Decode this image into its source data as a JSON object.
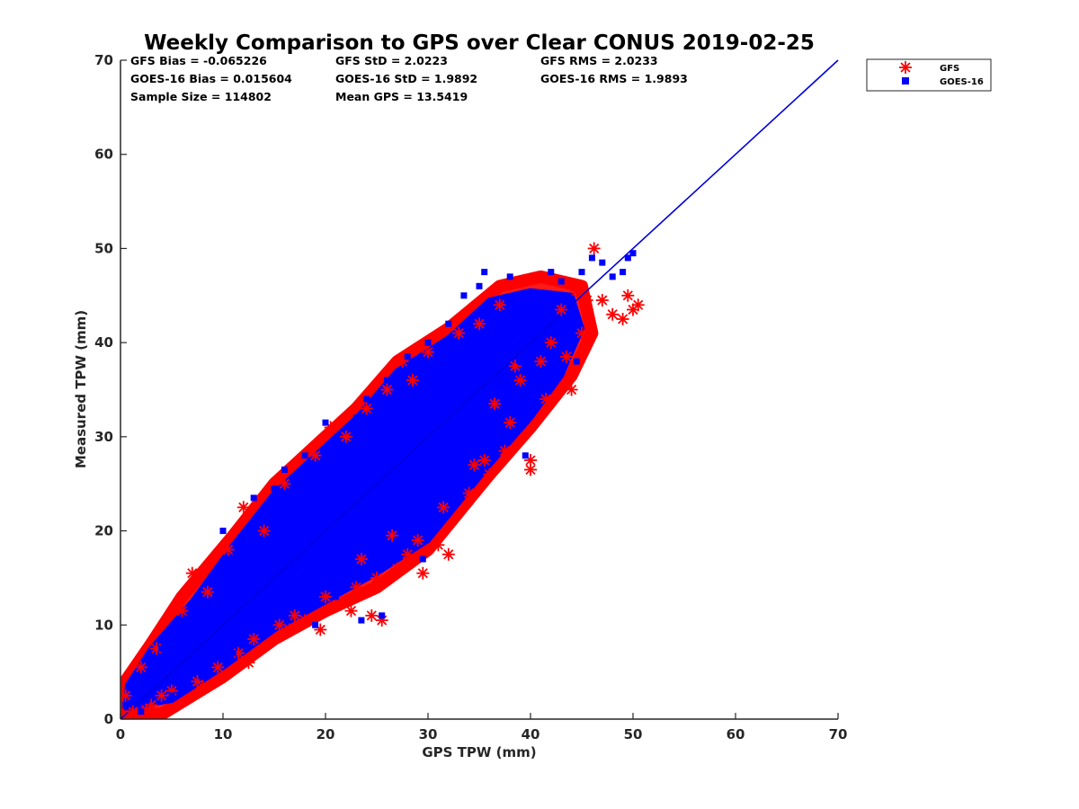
{
  "chart_data": {
    "type": "scatter",
    "title": "Weekly Comparison to GPS over Clear CONUS 2019-02-25",
    "xlabel": "GPS TPW (mm)",
    "ylabel": "Measured TPW (mm)",
    "xlim": [
      0,
      70
    ],
    "ylim": [
      0,
      70
    ],
    "xticks": [
      "0",
      "10",
      "20",
      "30",
      "40",
      "50",
      "60",
      "70"
    ],
    "yticks": [
      "0",
      "10",
      "20",
      "30",
      "40",
      "50",
      "60",
      "70"
    ],
    "grid": false,
    "legend_position": "outside-top-right",
    "stats": [
      [
        "GFS Bias = -0.065226",
        "GFS StD = 2.0223",
        "GFS RMS = 2.0233"
      ],
      [
        "GOES-16 Bias = 0.015604",
        "GOES-16 StD = 1.9892",
        "GOES-16 RMS = 1.9893"
      ],
      [
        "Sample Size = 114802",
        "Mean GPS = 13.5419"
      ]
    ],
    "reference_line": {
      "name": "1:1 line",
      "x": [
        0,
        70
      ],
      "y": [
        0,
        70
      ],
      "color": "#0000dd"
    },
    "series": [
      {
        "name": "GFS",
        "marker": "asterisk",
        "color": "#ff0000",
        "points": [
          [
            0.5,
            2.5
          ],
          [
            1.2,
            0.8
          ],
          [
            2.0,
            5.5
          ],
          [
            2.5,
            1.0
          ],
          [
            3.5,
            7.5
          ],
          [
            4.0,
            2.5
          ],
          [
            5.0,
            3.0
          ],
          [
            6.0,
            11.5
          ],
          [
            7.0,
            15.5
          ],
          [
            7.5,
            4.0
          ],
          [
            8.5,
            13.5
          ],
          [
            9.5,
            5.5
          ],
          [
            10.5,
            18.0
          ],
          [
            11.5,
            7.0
          ],
          [
            12.0,
            22.5
          ],
          [
            13.0,
            8.5
          ],
          [
            14.0,
            20.0
          ],
          [
            15.5,
            10.0
          ],
          [
            16.0,
            25.0
          ],
          [
            17.0,
            11.0
          ],
          [
            18.0,
            10.5
          ],
          [
            19.0,
            28.0
          ],
          [
            19.5,
            9.5
          ],
          [
            20.5,
            31.0
          ],
          [
            21.0,
            12.0
          ],
          [
            22.0,
            30.0
          ],
          [
            22.5,
            11.5
          ],
          [
            23.0,
            14.0
          ],
          [
            24.0,
            33.0
          ],
          [
            24.5,
            11.0
          ],
          [
            25.0,
            15.0
          ],
          [
            25.5,
            10.5
          ],
          [
            26.0,
            35.0
          ],
          [
            27.0,
            16.0
          ],
          [
            27.5,
            38.0
          ],
          [
            28.0,
            17.5
          ],
          [
            28.5,
            36.0
          ],
          [
            29.0,
            19.0
          ],
          [
            29.5,
            15.5
          ],
          [
            30.0,
            39.0
          ],
          [
            31.0,
            18.5
          ],
          [
            32.0,
            17.5
          ],
          [
            33.0,
            41.0
          ],
          [
            34.0,
            24.0
          ],
          [
            35.0,
            42.0
          ],
          [
            35.5,
            27.5
          ],
          [
            36.0,
            26.0
          ],
          [
            37.0,
            44.0
          ],
          [
            37.5,
            28.5
          ],
          [
            38.0,
            31.5
          ],
          [
            39.0,
            36.0
          ],
          [
            40.0,
            27.5
          ],
          [
            40.0,
            26.5
          ],
          [
            41.0,
            38.0
          ],
          [
            42.0,
            40.0
          ],
          [
            43.0,
            43.5
          ],
          [
            44.0,
            35.0
          ],
          [
            45.0,
            41.0
          ],
          [
            45.5,
            44.5
          ],
          [
            46.2,
            50.0
          ],
          [
            47.0,
            44.5
          ],
          [
            48.0,
            43.0
          ],
          [
            49.0,
            42.5
          ],
          [
            50.0,
            43.5
          ],
          [
            50.5,
            44.0
          ],
          [
            49.5,
            45.0
          ],
          [
            3.0,
            1.5
          ],
          [
            8.0,
            3.5
          ],
          [
            12.5,
            6.0
          ],
          [
            16.5,
            9.5
          ],
          [
            20.0,
            13.0
          ],
          [
            23.5,
            17.0
          ],
          [
            26.5,
            19.5
          ],
          [
            31.5,
            22.5
          ],
          [
            34.5,
            27.0
          ],
          [
            36.5,
            33.5
          ],
          [
            38.5,
            37.5
          ],
          [
            41.5,
            34.0
          ],
          [
            43.5,
            38.5
          ],
          [
            44.5,
            45.5
          ]
        ]
      },
      {
        "name": "GOES-16",
        "marker": "square",
        "color": "#0000ff",
        "points": [
          [
            0.5,
            1.5
          ],
          [
            1.5,
            3.5
          ],
          [
            2.0,
            0.8
          ],
          [
            3.0,
            5.0
          ],
          [
            4.0,
            7.5
          ],
          [
            5.0,
            2.5
          ],
          [
            6.0,
            9.5
          ],
          [
            7.0,
            12.0
          ],
          [
            8.0,
            4.5
          ],
          [
            9.0,
            15.0
          ],
          [
            10.0,
            20.0
          ],
          [
            11.0,
            7.0
          ],
          [
            12.0,
            17.0
          ],
          [
            13.0,
            23.5
          ],
          [
            14.0,
            9.5
          ],
          [
            15.0,
            24.5
          ],
          [
            16.0,
            26.5
          ],
          [
            17.0,
            12.5
          ],
          [
            18.0,
            28.0
          ],
          [
            18.5,
            25.0
          ],
          [
            19.0,
            10.0
          ],
          [
            20.0,
            31.5
          ],
          [
            21.0,
            13.0
          ],
          [
            22.0,
            28.0
          ],
          [
            23.0,
            32.0
          ],
          [
            23.5,
            10.5
          ],
          [
            24.0,
            34.0
          ],
          [
            25.0,
            16.5
          ],
          [
            25.5,
            11.0
          ],
          [
            26.0,
            36.0
          ],
          [
            27.0,
            19.0
          ],
          [
            28.0,
            38.5
          ],
          [
            29.0,
            22.0
          ],
          [
            29.5,
            17.0
          ],
          [
            30.0,
            40.0
          ],
          [
            31.0,
            24.0
          ],
          [
            32.0,
            42.0
          ],
          [
            33.0,
            28.0
          ],
          [
            33.5,
            45.0
          ],
          [
            34.0,
            32.0
          ],
          [
            35.0,
            46.0
          ],
          [
            35.5,
            47.5
          ],
          [
            36.0,
            44.0
          ],
          [
            37.0,
            43.0
          ],
          [
            38.0,
            47.0
          ],
          [
            39.0,
            38.0
          ],
          [
            39.5,
            28.0
          ],
          [
            40.0,
            44.0
          ],
          [
            41.0,
            45.0
          ],
          [
            42.0,
            47.5
          ],
          [
            43.0,
            46.5
          ],
          [
            44.0,
            41.0
          ],
          [
            44.5,
            38.0
          ],
          [
            45.0,
            47.5
          ],
          [
            46.0,
            49.0
          ],
          [
            47.0,
            48.5
          ],
          [
            48.0,
            47.0
          ],
          [
            49.0,
            47.5
          ],
          [
            49.5,
            49.0
          ],
          [
            50.0,
            49.5
          ],
          [
            2.5,
            2.0
          ],
          [
            6.5,
            4.0
          ],
          [
            10.5,
            8.5
          ],
          [
            14.5,
            13.0
          ],
          [
            18.0,
            16.5
          ],
          [
            21.5,
            20.0
          ],
          [
            25.0,
            23.5
          ],
          [
            28.5,
            27.0
          ],
          [
            31.5,
            30.5
          ],
          [
            34.5,
            33.0
          ],
          [
            37.5,
            36.0
          ],
          [
            40.5,
            39.5
          ]
        ]
      }
    ]
  }
}
